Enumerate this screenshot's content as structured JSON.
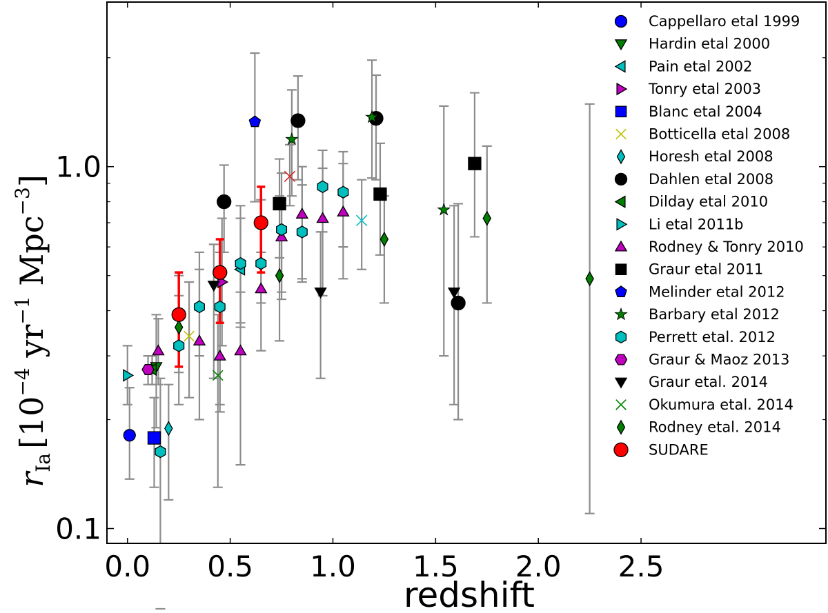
{
  "chart_data": {
    "type": "scatter",
    "title": "",
    "xlabel": "redshift",
    "ylabel": {
      "symbol": "r",
      "subscript": "Ia",
      "units_prefix": "[10",
      "exp1": "−4",
      "units_mid": " yr",
      "exp2": "−1",
      "units_mid2": " Mpc",
      "exp3": "−3",
      "units_suffix": "]"
    },
    "xscale": "linear",
    "yscale": "log",
    "xlim": [
      -0.1,
      3.4
    ],
    "ylim": [
      0.091,
      2.85
    ],
    "xticks": [
      {
        "value": 0.0,
        "label": "0.0"
      },
      {
        "value": 0.5,
        "label": "0.5"
      },
      {
        "value": 1.0,
        "label": "1.0"
      },
      {
        "value": 1.5,
        "label": "1.5"
      },
      {
        "value": 2.0,
        "label": "2.0"
      },
      {
        "value": 2.5,
        "label": "2.5"
      }
    ],
    "yticks": [
      {
        "value": 0.1,
        "label": "0.1"
      },
      {
        "value": 1.0,
        "label": "1.0"
      }
    ],
    "legend_position": "top-right",
    "series": [
      {
        "name": "Cappellaro etal 1999",
        "marker": "circle",
        "color": "#0000ff",
        "points": [
          {
            "x": 0.01,
            "y": 0.181,
            "lo": 0.137,
            "hi": 0.245
          }
        ]
      },
      {
        "name": "Hardin etal 2000",
        "marker": "triangle-down",
        "color": "#007f00",
        "points": [
          {
            "x": 0.14,
            "y": 0.28,
            "lo": 0.19,
            "hi": 0.39
          }
        ]
      },
      {
        "name": "Pain etal 2002",
        "marker": "triangle-left",
        "color": "#00bfbf",
        "points": [
          {
            "x": 0.55,
            "y": 0.52,
            "lo": 0.36,
            "hi": 0.72
          }
        ]
      },
      {
        "name": "Tonry etal 2003",
        "marker": "triangle-right",
        "color": "#bf00bf",
        "points": [
          {
            "x": 0.46,
            "y": 0.48,
            "lo": 0.32,
            "hi": 0.72
          }
        ]
      },
      {
        "name": "Blanc etal 2004",
        "marker": "square",
        "color": "#0000ff",
        "points": [
          {
            "x": 0.13,
            "y": 0.178,
            "lo": 0.13,
            "hi": 0.23
          }
        ]
      },
      {
        "name": "Botticella etal 2008",
        "marker": "x",
        "color": "#bfbf00",
        "points": [
          {
            "x": 0.3,
            "y": 0.34,
            "lo": 0.23,
            "hi": 0.48
          }
        ]
      },
      {
        "name": "Horesh etal 2008",
        "marker": "thin-diamond",
        "color": "#00bfbf",
        "points": [
          {
            "x": 0.2,
            "y": 0.189,
            "lo": 0.12,
            "hi": 0.25
          }
        ]
      },
      {
        "name": "Dahlen etal 2008",
        "marker": "circle",
        "color": "#000000",
        "points": [
          {
            "x": 0.47,
            "y": 0.8,
            "lo": 0.58,
            "hi": 1.01
          },
          {
            "x": 0.83,
            "y": 1.34,
            "lo": 0.92,
            "hi": 1.78
          },
          {
            "x": 1.21,
            "y": 1.36,
            "lo": 0.92,
            "hi": 1.79
          },
          {
            "x": 1.61,
            "y": 0.42,
            "lo": 0.2,
            "hi": 0.79
          }
        ]
      },
      {
        "name": "Dilday etal 2010",
        "marker": "triangle-left",
        "color": "#007f00",
        "points": [
          {
            "x": 0.12,
            "y": 0.275,
            "lo": 0.25,
            "hi": 0.3
          }
        ]
      },
      {
        "name": "Li etal 2011b",
        "marker": "triangle-right",
        "color": "#00bfbf",
        "points": [
          {
            "x": 0.0,
            "y": 0.265,
            "lo": 0.22,
            "hi": 0.32
          }
        ]
      },
      {
        "name": "Rodney & Tonry 2010",
        "marker": "triangle-up",
        "color": "#bf00bf",
        "points": [
          {
            "x": 0.15,
            "y": 0.31,
            "lo": 0.25,
            "hi": 0.38
          },
          {
            "x": 0.35,
            "y": 0.33,
            "lo": 0.2,
            "hi": 0.52
          },
          {
            "x": 0.45,
            "y": 0.3,
            "lo": 0.21,
            "hi": 0.4
          },
          {
            "x": 0.55,
            "y": 0.31,
            "lo": 0.15,
            "hi": 0.45
          },
          {
            "x": 0.65,
            "y": 0.46,
            "lo": 0.31,
            "hi": 0.58
          },
          {
            "x": 0.75,
            "y": 0.64,
            "lo": 0.45,
            "hi": 0.81
          },
          {
            "x": 0.85,
            "y": 0.74,
            "lo": 0.49,
            "hi": 1.0
          },
          {
            "x": 0.95,
            "y": 0.72,
            "lo": 0.44,
            "hi": 0.99
          },
          {
            "x": 1.05,
            "y": 0.75,
            "lo": 0.49,
            "hi": 1.02
          }
        ]
      },
      {
        "name": "Graur etal 2011",
        "marker": "square",
        "color": "#000000",
        "points": [
          {
            "x": 0.74,
            "y": 0.79,
            "lo": 0.56,
            "hi": 1.05
          },
          {
            "x": 1.23,
            "y": 0.84,
            "lo": 0.57,
            "hi": 1.16
          },
          {
            "x": 1.69,
            "y": 1.02,
            "lo": 0.64,
            "hi": 1.6
          }
        ]
      },
      {
        "name": "Melinder etal 2012",
        "marker": "pentagon",
        "color": "#0000ff",
        "points": [
          {
            "x": 0.62,
            "y": 1.33,
            "lo": 0.8,
            "hi": 2.06
          }
        ]
      },
      {
        "name": "Barbary etal 2012",
        "marker": "star",
        "color": "#007f00",
        "points": [
          {
            "x": 0.8,
            "y": 1.19,
            "lo": 0.83,
            "hi": 1.63
          },
          {
            "x": 1.19,
            "y": 1.37,
            "lo": 0.93,
            "hi": 1.97
          },
          {
            "x": 1.54,
            "y": 0.76,
            "lo": 0.3,
            "hi": 1.47
          }
        ]
      },
      {
        "name": "Perrett etal. 2012",
        "marker": "hexagon",
        "color": "#00bfbf",
        "points": [
          {
            "x": 0.16,
            "y": 0.163,
            "lo": 0.06,
            "hi": 0.26
          },
          {
            "x": 0.25,
            "y": 0.32,
            "lo": 0.22,
            "hi": 0.44
          },
          {
            "x": 0.35,
            "y": 0.41,
            "lo": 0.3,
            "hi": 0.58
          },
          {
            "x": 0.45,
            "y": 0.41,
            "lo": 0.22,
            "hi": 0.58
          },
          {
            "x": 0.55,
            "y": 0.54,
            "lo": 0.37,
            "hi": 0.78
          },
          {
            "x": 0.65,
            "y": 0.54,
            "lo": 0.42,
            "hi": 0.81
          },
          {
            "x": 0.75,
            "y": 0.67,
            "lo": 0.43,
            "hi": 0.96
          },
          {
            "x": 0.85,
            "y": 0.66,
            "lo": 0.48,
            "hi": 0.89
          },
          {
            "x": 0.95,
            "y": 0.88,
            "lo": 0.66,
            "hi": 1.11
          },
          {
            "x": 1.05,
            "y": 0.85,
            "lo": 0.6,
            "hi": 1.1
          }
        ]
      },
      {
        "name": "Graur & Maoz 2013",
        "marker": "hexagon-alt",
        "color": "#bf00bf",
        "points": [
          {
            "x": 0.1,
            "y": 0.275,
            "lo": 0.25,
            "hi": 0.3
          }
        ]
      },
      {
        "name": "Graur etal. 2014",
        "marker": "triangle-down",
        "color": "#000000",
        "points": [
          {
            "x": 0.42,
            "y": 0.47,
            "lo": 0.26,
            "hi": 0.61
          },
          {
            "x": 0.94,
            "y": 0.45,
            "lo": 0.26,
            "hi": 0.66
          },
          {
            "x": 1.59,
            "y": 0.45,
            "lo": 0.22,
            "hi": 0.78
          }
        ]
      },
      {
        "name": "Okumura etal. 2014",
        "marker": "x",
        "color": "#007f00",
        "points": [
          {
            "x": 0.44,
            "y": 0.265,
            "lo": 0.13,
            "hi": 0.39
          }
        ]
      },
      {
        "name": "Rodney etal. 2014",
        "marker": "thin-diamond",
        "color": "#007f00",
        "points": [
          {
            "x": 0.25,
            "y": 0.36,
            "lo": 0.27,
            "hi": 0.5
          },
          {
            "x": 0.74,
            "y": 0.5,
            "lo": 0.33,
            "hi": 0.83
          },
          {
            "x": 1.25,
            "y": 0.63,
            "lo": 0.42,
            "hi": 0.83
          },
          {
            "x": 1.75,
            "y": 0.72,
            "lo": 0.42,
            "hi": 1.14
          },
          {
            "x": 2.25,
            "y": 0.49,
            "lo": 0.11,
            "hi": 1.49
          }
        ]
      },
      {
        "name": "SUDARE",
        "marker": "circle",
        "color": "#ff0000",
        "error_color": "#ff0000",
        "points": [
          {
            "x": 0.25,
            "y": 0.39,
            "lo": 0.28,
            "hi": 0.51
          },
          {
            "x": 0.45,
            "y": 0.51,
            "lo": 0.37,
            "hi": 0.63
          },
          {
            "x": 0.65,
            "y": 0.7,
            "lo": 0.51,
            "hi": 0.88
          }
        ]
      }
    ],
    "extra_points": [
      {
        "x": 0.79,
        "y": 0.94,
        "lo": 0.78,
        "hi": 1.15,
        "marker": "x",
        "color": "#dd2222"
      },
      {
        "x": 1.14,
        "y": 0.71,
        "lo": 0.52,
        "hi": 0.92,
        "marker": "x",
        "color": "#00bfbf"
      }
    ]
  }
}
